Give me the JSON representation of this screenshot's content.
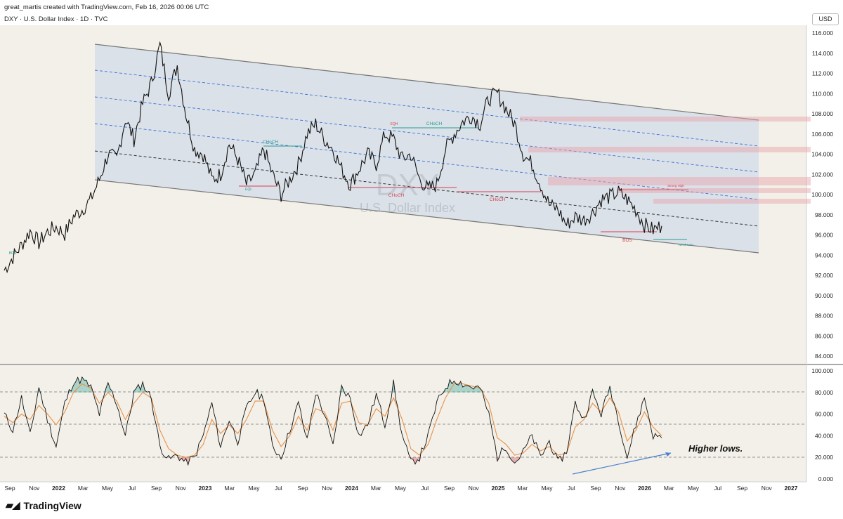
{
  "header": {
    "attribution": "great_martis created with TradingView.com, Feb 16, 2026 00:06 UTC",
    "symbol_line": "DXY · U.S. Dollar Index · 1D · TVC",
    "currency": "USD"
  },
  "watermark": {
    "ticker": "DXY",
    "name": "U.S. Dollar Index"
  },
  "footer": {
    "brand": "TradingView",
    "brand_icon": "tradingview-logo-icon"
  },
  "chart_data": [
    {
      "type": "line",
      "title": "DXY · U.S. Dollar Index · 1D · TVC",
      "ylim": [
        83,
        117
      ],
      "y_ticks": [
        "84.000",
        "86.000",
        "88.000",
        "90.000",
        "92.000",
        "94.000",
        "96.000",
        "98.000",
        "100.000",
        "102.000",
        "104.000",
        "106.000",
        "108.000",
        "110.000",
        "112.000",
        "114.000",
        "116.000"
      ],
      "x_tick_labels": [
        "Sep",
        "Nov",
        "2022",
        "Mar",
        "May",
        "Jul",
        "Sep",
        "Nov",
        "2023",
        "Mar",
        "May",
        "Jul",
        "Sep",
        "Nov",
        "2024",
        "Mar",
        "May",
        "Jul",
        "Sep",
        "Nov",
        "2025",
        "Mar",
        "May",
        "Jul",
        "Sep",
        "Nov",
        "2026",
        "Mar",
        "May",
        "Jul",
        "Sep",
        "Nov",
        "2027"
      ],
      "series": [
        {
          "values": [
            92.5,
            93.8,
            95.0,
            96.4,
            95.2,
            96.3,
            96.8,
            96.1,
            97.8,
            98.5,
            99.5,
            101.5,
            104.0,
            103.5,
            107.5,
            105.5,
            109.0,
            111.0,
            114.8,
            110.0,
            112.8,
            108.0,
            104.5,
            104.0,
            101.5,
            102.0,
            105.0,
            103.5,
            101.0,
            102.0,
            104.5,
            102.0,
            100.0,
            101.5,
            103.0,
            106.0,
            107.0,
            105.5,
            104.5,
            102.5,
            101.0,
            102.5,
            104.0,
            103.0,
            106.0,
            105.5,
            103.5,
            104.0,
            101.5,
            100.5,
            101.0,
            104.5,
            106.0,
            107.2,
            107.8,
            107.0,
            109.5,
            110.0,
            108.5,
            107.0,
            104.0,
            103.0,
            101.0,
            99.0,
            98.5,
            97.0,
            97.8,
            97.5,
            98.2,
            99.5,
            99.8,
            100.2,
            99.5,
            98.5,
            97.0,
            96.5,
            96.9
          ]
        }
      ],
      "annotations": {
        "structure_labels": [
          "BOS",
          "CHoCH",
          "CHoCH",
          "EQL",
          "EQH",
          "CHoCH",
          "CHoCH",
          "BOS",
          "Strong High",
          "Weak Low"
        ],
        "channel": "descending channel"
      }
    },
    {
      "type": "line",
      "ylim": [
        -5,
        105
      ],
      "y_ticks": [
        "0.000",
        "20.000",
        "40.000",
        "60.000",
        "80.000",
        "100.000"
      ],
      "levels": [
        20,
        50,
        80
      ],
      "series": [
        {
          "color": "#111111",
          "values": [
            60,
            45,
            75,
            40,
            85,
            55,
            30,
            70,
            90,
            92,
            85,
            60,
            88,
            70,
            40,
            80,
            88,
            75,
            30,
            18,
            22,
            15,
            20,
            40,
            70,
            30,
            55,
            35,
            65,
            80,
            75,
            30,
            20,
            45,
            70,
            35,
            80,
            60,
            30,
            85,
            75,
            40,
            50,
            78,
            50,
            88,
            40,
            15,
            20,
            40,
            70,
            85,
            92,
            88,
            85,
            84,
            60,
            20,
            30,
            15,
            25,
            40,
            20,
            35,
            15,
            25,
            70,
            55,
            80,
            60,
            85,
            55,
            20,
            50,
            75,
            40,
            38
          ]
        },
        {
          "color": "#E8914A",
          "values": [
            58,
            52,
            60,
            55,
            68,
            60,
            50,
            62,
            80,
            88,
            84,
            70,
            80,
            72,
            55,
            70,
            80,
            75,
            45,
            28,
            22,
            20,
            22,
            32,
            55,
            42,
            50,
            42,
            55,
            72,
            72,
            45,
            30,
            40,
            58,
            45,
            65,
            62,
            45,
            70,
            72,
            52,
            50,
            65,
            58,
            75,
            55,
            28,
            22,
            32,
            55,
            75,
            88,
            88,
            86,
            84,
            70,
            38,
            32,
            22,
            24,
            32,
            26,
            30,
            22,
            24,
            48,
            55,
            70,
            62,
            75,
            62,
            35,
            45,
            62,
            48,
            40
          ]
        }
      ],
      "annotations": {
        "text": "Higher lows."
      }
    }
  ],
  "colors": {
    "bg": "#F2F0E8",
    "channel_fill": "#D6DEE8",
    "bull": "#2A9D8F",
    "bear": "#D8404F",
    "ema": "#E8914A",
    "trend": "#4A7FD0",
    "dashed_blue": "#3B6FD8"
  }
}
